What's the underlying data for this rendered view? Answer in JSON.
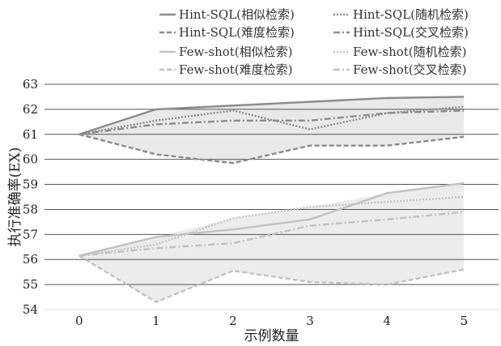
{
  "chart_data": {
    "type": "line",
    "xlabel": "示例数量",
    "ylabel": "执行准确率(EX)",
    "x": [
      0,
      1,
      2,
      3,
      4,
      5
    ],
    "xlim": [
      -0.45,
      5.45
    ],
    "ylim": [
      54,
      63
    ],
    "yticks": [
      54,
      55,
      56,
      57,
      58,
      59,
      60,
      61,
      62,
      63
    ],
    "grid": "horizontal",
    "legend_position": "top",
    "series": [
      {
        "name": "Hint-SQL(相似检索)",
        "values": [
          61.0,
          62.0,
          62.15,
          62.3,
          62.45,
          62.5
        ],
        "color": "#8c8c8c",
        "dash": "solid",
        "group": "hint"
      },
      {
        "name": "Hint-SQL(随机检索)",
        "values": [
          61.0,
          61.55,
          61.95,
          61.2,
          61.85,
          62.1
        ],
        "color": "#8c8c8c",
        "dash": "dot",
        "group": "hint"
      },
      {
        "name": "Hint-SQL(难度检索)",
        "values": [
          61.0,
          60.2,
          59.85,
          60.55,
          60.55,
          60.9
        ],
        "color": "#8c8c8c",
        "dash": "dash",
        "group": "hint"
      },
      {
        "name": "Hint-SQL(交叉检索)",
        "values": [
          61.0,
          61.4,
          61.55,
          61.55,
          61.85,
          61.95
        ],
        "color": "#8c8c8c",
        "dash": "dashdot",
        "group": "hint"
      },
      {
        "name": "Few-shot(相似检索)",
        "values": [
          56.15,
          56.9,
          57.2,
          57.6,
          58.65,
          59.05
        ],
        "color": "#c2c2c2",
        "dash": "solid",
        "group": "few"
      },
      {
        "name": "Few-shot(随机检索)",
        "values": [
          56.15,
          56.6,
          57.65,
          58.1,
          58.3,
          58.5
        ],
        "color": "#c2c2c2",
        "dash": "dot",
        "group": "few"
      },
      {
        "name": "Few-shot(难度检索)",
        "values": [
          56.15,
          54.3,
          55.55,
          55.1,
          55.0,
          55.6
        ],
        "color": "#c2c2c2",
        "dash": "dash",
        "group": "few"
      },
      {
        "name": "Few-shot(交叉检索)",
        "values": [
          56.15,
          56.45,
          56.65,
          57.35,
          57.6,
          57.9
        ],
        "color": "#c2c2c2",
        "dash": "dashdot",
        "group": "few"
      }
    ]
  }
}
